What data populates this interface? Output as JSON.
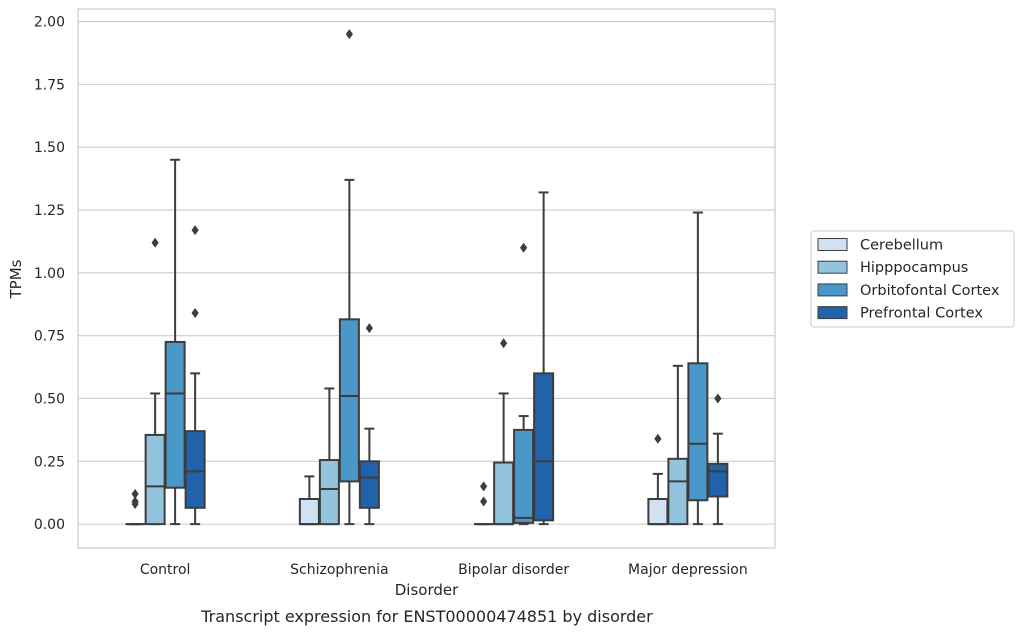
{
  "chart_data": {
    "type": "boxplot",
    "xlabel": "Disorder",
    "ylabel": "TPMs",
    "caption": "Transcript expression for ENST00000474851 by disorder",
    "ylim": [
      -0.095,
      2.05
    ],
    "yticks": [
      "0.00",
      "0.25",
      "0.50",
      "0.75",
      "1.00",
      "1.25",
      "1.50",
      "1.75",
      "2.00"
    ],
    "grid": "horizontal",
    "legend_position": "right",
    "categories": [
      "Control",
      "Schizophrenia",
      "Bipolar disorder",
      "Major depression"
    ],
    "series": [
      {
        "name": "Cerebellum",
        "color": "#cfe1f2",
        "boxes": [
          {
            "whisker_low": 0,
            "q1": 0,
            "median": 0,
            "q3": 0,
            "whisker_high": 0,
            "outliers": [
              0.08,
              0.09,
              0.12
            ]
          },
          {
            "whisker_low": 0,
            "q1": 0,
            "median": 0,
            "q3": 0.1,
            "whisker_high": 0.19,
            "outliers": []
          },
          {
            "whisker_low": 0,
            "q1": 0,
            "median": 0,
            "q3": 0,
            "whisker_high": 0,
            "outliers": [
              0.09,
              0.15
            ]
          },
          {
            "whisker_low": 0,
            "q1": 0,
            "median": 0,
            "q3": 0.1,
            "whisker_high": 0.2,
            "outliers": [
              0.34
            ]
          }
        ]
      },
      {
        "name": "Hipppocampus",
        "color": "#93c4de",
        "boxes": [
          {
            "whisker_low": 0,
            "q1": 0,
            "median": 0.15,
            "q3": 0.355,
            "whisker_high": 0.52,
            "outliers": [
              1.12
            ]
          },
          {
            "whisker_low": 0,
            "q1": 0,
            "median": 0.14,
            "q3": 0.255,
            "whisker_high": 0.54,
            "outliers": []
          },
          {
            "whisker_low": 0,
            "q1": 0,
            "median": 0,
            "q3": 0.245,
            "whisker_high": 0.52,
            "outliers": [
              0.72
            ]
          },
          {
            "whisker_low": 0,
            "q1": 0,
            "median": 0.17,
            "q3": 0.26,
            "whisker_high": 0.63,
            "outliers": []
          }
        ]
      },
      {
        "name": "Orbitofontal Cortex",
        "color": "#4a98c9",
        "boxes": [
          {
            "whisker_low": 0,
            "q1": 0.145,
            "median": 0.52,
            "q3": 0.725,
            "whisker_high": 1.45,
            "outliers": []
          },
          {
            "whisker_low": 0,
            "q1": 0.17,
            "median": 0.51,
            "q3": 0.815,
            "whisker_high": 1.37,
            "outliers": [
              1.95
            ]
          },
          {
            "whisker_low": 0,
            "q1": 0.005,
            "median": 0.025,
            "q3": 0.375,
            "whisker_high": 0.43,
            "outliers": [
              1.1
            ]
          },
          {
            "whisker_low": 0,
            "q1": 0.095,
            "median": 0.32,
            "q3": 0.64,
            "whisker_high": 1.24,
            "outliers": []
          }
        ]
      },
      {
        "name": "Prefrontal Cortex",
        "color": "#2163aa",
        "boxes": [
          {
            "whisker_low": 0,
            "q1": 0.065,
            "median": 0.21,
            "q3": 0.37,
            "whisker_high": 0.6,
            "outliers": [
              0.84,
              1.17
            ]
          },
          {
            "whisker_low": 0,
            "q1": 0.065,
            "median": 0.185,
            "q3": 0.25,
            "whisker_high": 0.38,
            "outliers": [
              0.78
            ]
          },
          {
            "whisker_low": 0,
            "q1": 0.015,
            "median": 0.25,
            "q3": 0.6,
            "whisker_high": 1.32,
            "outliers": []
          },
          {
            "whisker_low": 0,
            "q1": 0.11,
            "median": 0.21,
            "q3": 0.24,
            "whisker_high": 0.36,
            "outliers": [
              0.5
            ]
          }
        ]
      }
    ]
  }
}
